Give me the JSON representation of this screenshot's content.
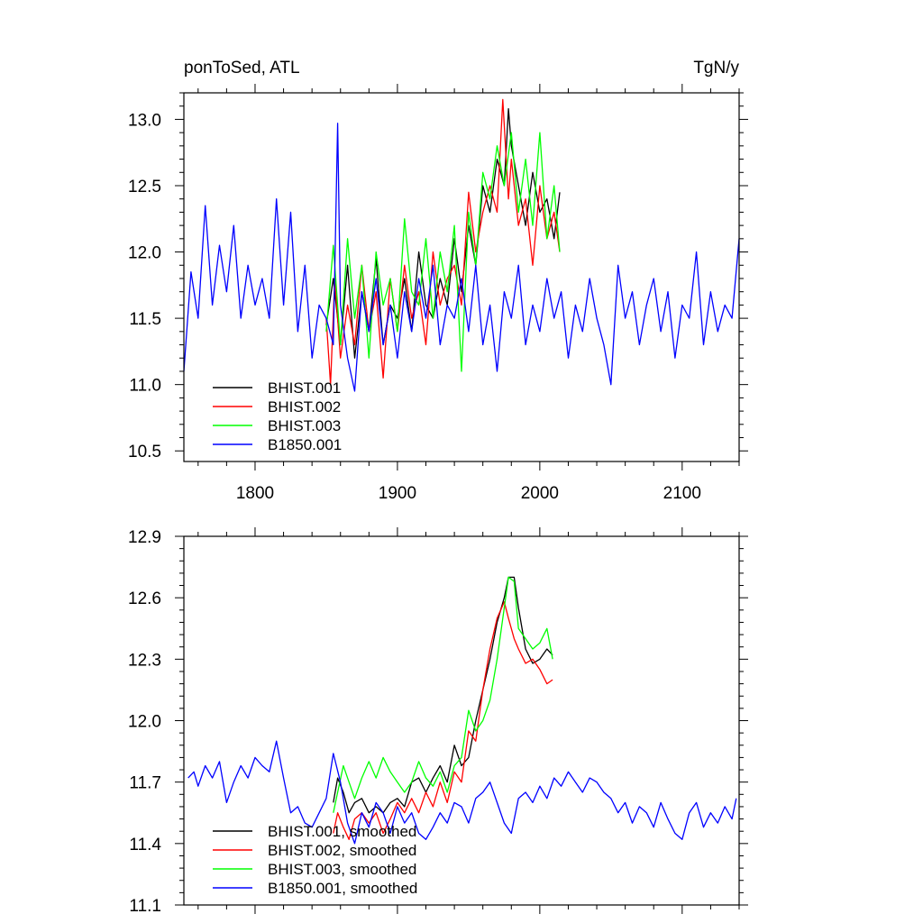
{
  "chart_data": [
    {
      "type": "line",
      "title_left": "ponToSed, ATL",
      "title_right": "TgN/y",
      "xlim": [
        1750,
        2140
      ],
      "ylim": [
        10.42,
        13.2
      ],
      "x_ticks": [
        1800,
        1900,
        2000,
        2100
      ],
      "x_tick_labels": [
        "1800",
        "1900",
        "2000",
        "2100"
      ],
      "y_ticks": [
        10.5,
        11.0,
        11.5,
        12.0,
        12.5,
        13.0
      ],
      "y_tick_labels": [
        "10.5",
        "11.0",
        "11.5",
        "12.0",
        "12.5",
        "13.0"
      ],
      "grid": false,
      "legend_position": "bottom-left",
      "series": [
        {
          "name": "BHIST.001",
          "color": "#000000",
          "x": [
            1850,
            1855,
            1860,
            1865,
            1870,
            1875,
            1880,
            1885,
            1890,
            1895,
            1900,
            1905,
            1910,
            1915,
            1920,
            1925,
            1930,
            1935,
            1940,
            1945,
            1950,
            1955,
            1960,
            1965,
            1970,
            1975,
            1978,
            1980,
            1985,
            1990,
            1995,
            2000,
            2005,
            2010,
            2014
          ],
          "y": [
            11.45,
            11.8,
            11.3,
            11.9,
            11.2,
            11.7,
            11.4,
            11.95,
            11.3,
            11.6,
            11.5,
            11.8,
            11.4,
            12.0,
            11.6,
            11.5,
            11.8,
            11.6,
            12.1,
            11.7,
            12.2,
            11.9,
            12.5,
            12.3,
            12.7,
            12.5,
            13.08,
            12.8,
            12.5,
            12.2,
            12.6,
            12.3,
            12.4,
            12.1,
            12.45
          ]
        },
        {
          "name": "BHIST.002",
          "color": "#ff0000",
          "x": [
            1850,
            1853,
            1856,
            1860,
            1865,
            1870,
            1875,
            1880,
            1885,
            1890,
            1895,
            1900,
            1905,
            1910,
            1915,
            1920,
            1925,
            1930,
            1935,
            1940,
            1945,
            1950,
            1955,
            1960,
            1965,
            1970,
            1974,
            1978,
            1980,
            1985,
            1990,
            1995,
            2000,
            2005,
            2010,
            2014
          ],
          "y": [
            11.5,
            11.0,
            11.8,
            11.2,
            11.6,
            11.3,
            11.9,
            11.4,
            11.7,
            11.05,
            11.8,
            11.4,
            11.9,
            11.5,
            11.7,
            11.3,
            12.0,
            11.6,
            11.8,
            11.9,
            11.6,
            12.45,
            12.0,
            12.3,
            12.5,
            12.3,
            13.15,
            12.4,
            12.7,
            12.2,
            12.4,
            11.9,
            12.5,
            12.1,
            12.3,
            12.0
          ]
        },
        {
          "name": "BHIST.003",
          "color": "#00ff00",
          "x": [
            1850,
            1855,
            1860,
            1865,
            1870,
            1875,
            1880,
            1885,
            1890,
            1895,
            1900,
            1905,
            1910,
            1915,
            1920,
            1925,
            1930,
            1935,
            1940,
            1945,
            1950,
            1955,
            1960,
            1965,
            1970,
            1975,
            1980,
            1985,
            1990,
            1995,
            2000,
            2005,
            2010,
            2014
          ],
          "y": [
            11.4,
            12.05,
            11.3,
            12.1,
            11.5,
            11.9,
            11.2,
            12.0,
            11.6,
            11.8,
            11.4,
            12.25,
            11.7,
            11.6,
            12.1,
            11.5,
            12.0,
            11.7,
            12.2,
            11.1,
            12.3,
            11.9,
            12.6,
            12.4,
            12.8,
            12.5,
            12.9,
            12.3,
            12.7,
            12.2,
            12.9,
            12.1,
            12.5,
            12.0
          ]
        },
        {
          "name": "B1850.001",
          "color": "#0000ff",
          "x": [
            1750,
            1755,
            1760,
            1765,
            1770,
            1775,
            1780,
            1785,
            1790,
            1795,
            1800,
            1805,
            1810,
            1815,
            1820,
            1825,
            1830,
            1835,
            1840,
            1845,
            1850,
            1855,
            1858,
            1860,
            1865,
            1870,
            1875,
            1880,
            1885,
            1890,
            1895,
            1900,
            1905,
            1910,
            1915,
            1920,
            1925,
            1930,
            1935,
            1940,
            1945,
            1950,
            1955,
            1960,
            1965,
            1970,
            1975,
            1980,
            1985,
            1990,
            1995,
            2000,
            2005,
            2010,
            2015,
            2020,
            2025,
            2030,
            2035,
            2040,
            2045,
            2050,
            2055,
            2060,
            2065,
            2070,
            2075,
            2080,
            2085,
            2090,
            2095,
            2100,
            2105,
            2110,
            2115,
            2120,
            2125,
            2130,
            2135,
            2140
          ],
          "y": [
            11.1,
            11.85,
            11.5,
            12.35,
            11.6,
            12.05,
            11.7,
            12.2,
            11.5,
            11.9,
            11.6,
            11.8,
            11.5,
            12.4,
            11.6,
            12.3,
            11.4,
            11.9,
            11.2,
            11.6,
            11.5,
            11.3,
            12.97,
            11.6,
            11.2,
            10.95,
            11.7,
            11.4,
            11.8,
            11.3,
            11.6,
            11.2,
            11.7,
            11.4,
            11.8,
            11.5,
            11.9,
            11.3,
            11.6,
            11.5,
            11.8,
            11.4,
            11.9,
            11.3,
            11.6,
            11.1,
            11.7,
            11.5,
            11.9,
            11.3,
            11.6,
            11.4,
            11.8,
            11.5,
            11.7,
            11.2,
            11.6,
            11.4,
            11.8,
            11.5,
            11.3,
            11.0,
            11.9,
            11.5,
            11.7,
            11.3,
            11.6,
            11.8,
            11.4,
            11.7,
            11.2,
            11.6,
            11.5,
            12.0,
            11.3,
            11.7,
            11.4,
            11.6,
            11.5,
            12.1
          ]
        }
      ]
    },
    {
      "type": "line",
      "xlim": [
        1750,
        2140
      ],
      "ylim": [
        11.1,
        12.9
      ],
      "x_ticks": [
        1800,
        1900,
        2000,
        2100
      ],
      "y_ticks": [
        11.1,
        11.4,
        11.7,
        12.0,
        12.3,
        12.6,
        12.9
      ],
      "y_tick_labels": [
        "11.1",
        "11.4",
        "11.7",
        "12.0",
        "12.3",
        "12.6",
        "12.9"
      ],
      "grid": false,
      "legend_position": "bottom-left",
      "series": [
        {
          "name": "BHIST.001, smoothed",
          "color": "#000000",
          "x": [
            1855,
            1858,
            1862,
            1866,
            1870,
            1875,
            1880,
            1885,
            1890,
            1895,
            1900,
            1905,
            1910,
            1915,
            1920,
            1925,
            1930,
            1935,
            1940,
            1945,
            1950,
            1955,
            1960,
            1965,
            1970,
            1975,
            1978,
            1982,
            1985,
            1990,
            1995,
            2000,
            2005,
            2009
          ],
          "y": [
            11.6,
            11.72,
            11.65,
            11.55,
            11.6,
            11.62,
            11.55,
            11.58,
            11.55,
            11.6,
            11.62,
            11.58,
            11.7,
            11.72,
            11.65,
            11.72,
            11.78,
            11.7,
            11.88,
            11.78,
            11.82,
            12.0,
            12.15,
            12.3,
            12.48,
            12.6,
            12.7,
            12.7,
            12.55,
            12.35,
            12.28,
            12.3,
            12.35,
            12.32
          ]
        },
        {
          "name": "BHIST.002, smoothed",
          "color": "#ff0000",
          "x": [
            1855,
            1858,
            1862,
            1866,
            1870,
            1875,
            1880,
            1885,
            1890,
            1895,
            1900,
            1905,
            1910,
            1915,
            1920,
            1925,
            1930,
            1935,
            1940,
            1945,
            1950,
            1955,
            1960,
            1965,
            1970,
            1975,
            1978,
            1982,
            1985,
            1990,
            1995,
            2000,
            2005,
            2009
          ],
          "y": [
            11.45,
            11.55,
            11.48,
            11.42,
            11.52,
            11.55,
            11.5,
            11.55,
            11.45,
            11.52,
            11.6,
            11.55,
            11.62,
            11.55,
            11.65,
            11.58,
            11.7,
            11.6,
            11.75,
            11.7,
            11.95,
            11.9,
            12.15,
            12.35,
            12.5,
            12.58,
            12.5,
            12.4,
            12.35,
            12.28,
            12.3,
            12.25,
            12.18,
            12.2
          ]
        },
        {
          "name": "BHIST.003, smoothed",
          "color": "#00ff00",
          "x": [
            1855,
            1858,
            1862,
            1866,
            1870,
            1875,
            1880,
            1885,
            1890,
            1895,
            1900,
            1905,
            1910,
            1915,
            1920,
            1925,
            1930,
            1935,
            1940,
            1945,
            1950,
            1955,
            1960,
            1965,
            1970,
            1975,
            1978,
            1982,
            1985,
            1990,
            1995,
            2000,
            2005,
            2009
          ],
          "y": [
            11.55,
            11.65,
            11.78,
            11.7,
            11.62,
            11.72,
            11.8,
            11.72,
            11.82,
            11.75,
            11.7,
            11.65,
            11.7,
            11.8,
            11.72,
            11.68,
            11.75,
            11.65,
            11.78,
            11.82,
            12.05,
            11.95,
            12.0,
            12.1,
            12.3,
            12.55,
            12.7,
            12.68,
            12.45,
            12.4,
            12.35,
            12.38,
            12.45,
            12.3
          ]
        },
        {
          "name": "B1850.001, smoothed",
          "color": "#0000ff",
          "x": [
            1753,
            1757,
            1760,
            1765,
            1770,
            1775,
            1780,
            1785,
            1790,
            1795,
            1800,
            1805,
            1810,
            1815,
            1820,
            1825,
            1830,
            1835,
            1840,
            1845,
            1850,
            1855,
            1860,
            1865,
            1870,
            1875,
            1880,
            1885,
            1890,
            1895,
            1900,
            1905,
            1910,
            1915,
            1920,
            1925,
            1930,
            1935,
            1940,
            1945,
            1950,
            1955,
            1960,
            1965,
            1970,
            1975,
            1980,
            1985,
            1990,
            1995,
            2000,
            2005,
            2010,
            2015,
            2020,
            2025,
            2030,
            2035,
            2040,
            2045,
            2050,
            2055,
            2060,
            2065,
            2070,
            2075,
            2080,
            2085,
            2090,
            2095,
            2100,
            2105,
            2110,
            2115,
            2120,
            2125,
            2130,
            2135,
            2138
          ],
          "y": [
            11.72,
            11.75,
            11.68,
            11.78,
            11.72,
            11.8,
            11.6,
            11.7,
            11.78,
            11.72,
            11.82,
            11.78,
            11.75,
            11.9,
            11.72,
            11.55,
            11.58,
            11.5,
            11.48,
            11.55,
            11.62,
            11.84,
            11.7,
            11.5,
            11.4,
            11.55,
            11.48,
            11.6,
            11.55,
            11.45,
            11.58,
            11.5,
            11.55,
            11.45,
            11.42,
            11.48,
            11.55,
            11.5,
            11.6,
            11.58,
            11.5,
            11.62,
            11.65,
            11.7,
            11.6,
            11.5,
            11.45,
            11.62,
            11.65,
            11.6,
            11.68,
            11.62,
            11.72,
            11.68,
            11.75,
            11.7,
            11.65,
            11.72,
            11.7,
            11.65,
            11.62,
            11.55,
            11.6,
            11.5,
            11.58,
            11.55,
            11.48,
            11.6,
            11.52,
            11.45,
            11.42,
            11.55,
            11.6,
            11.48,
            11.55,
            11.5,
            11.58,
            11.52,
            11.62
          ]
        }
      ]
    }
  ]
}
